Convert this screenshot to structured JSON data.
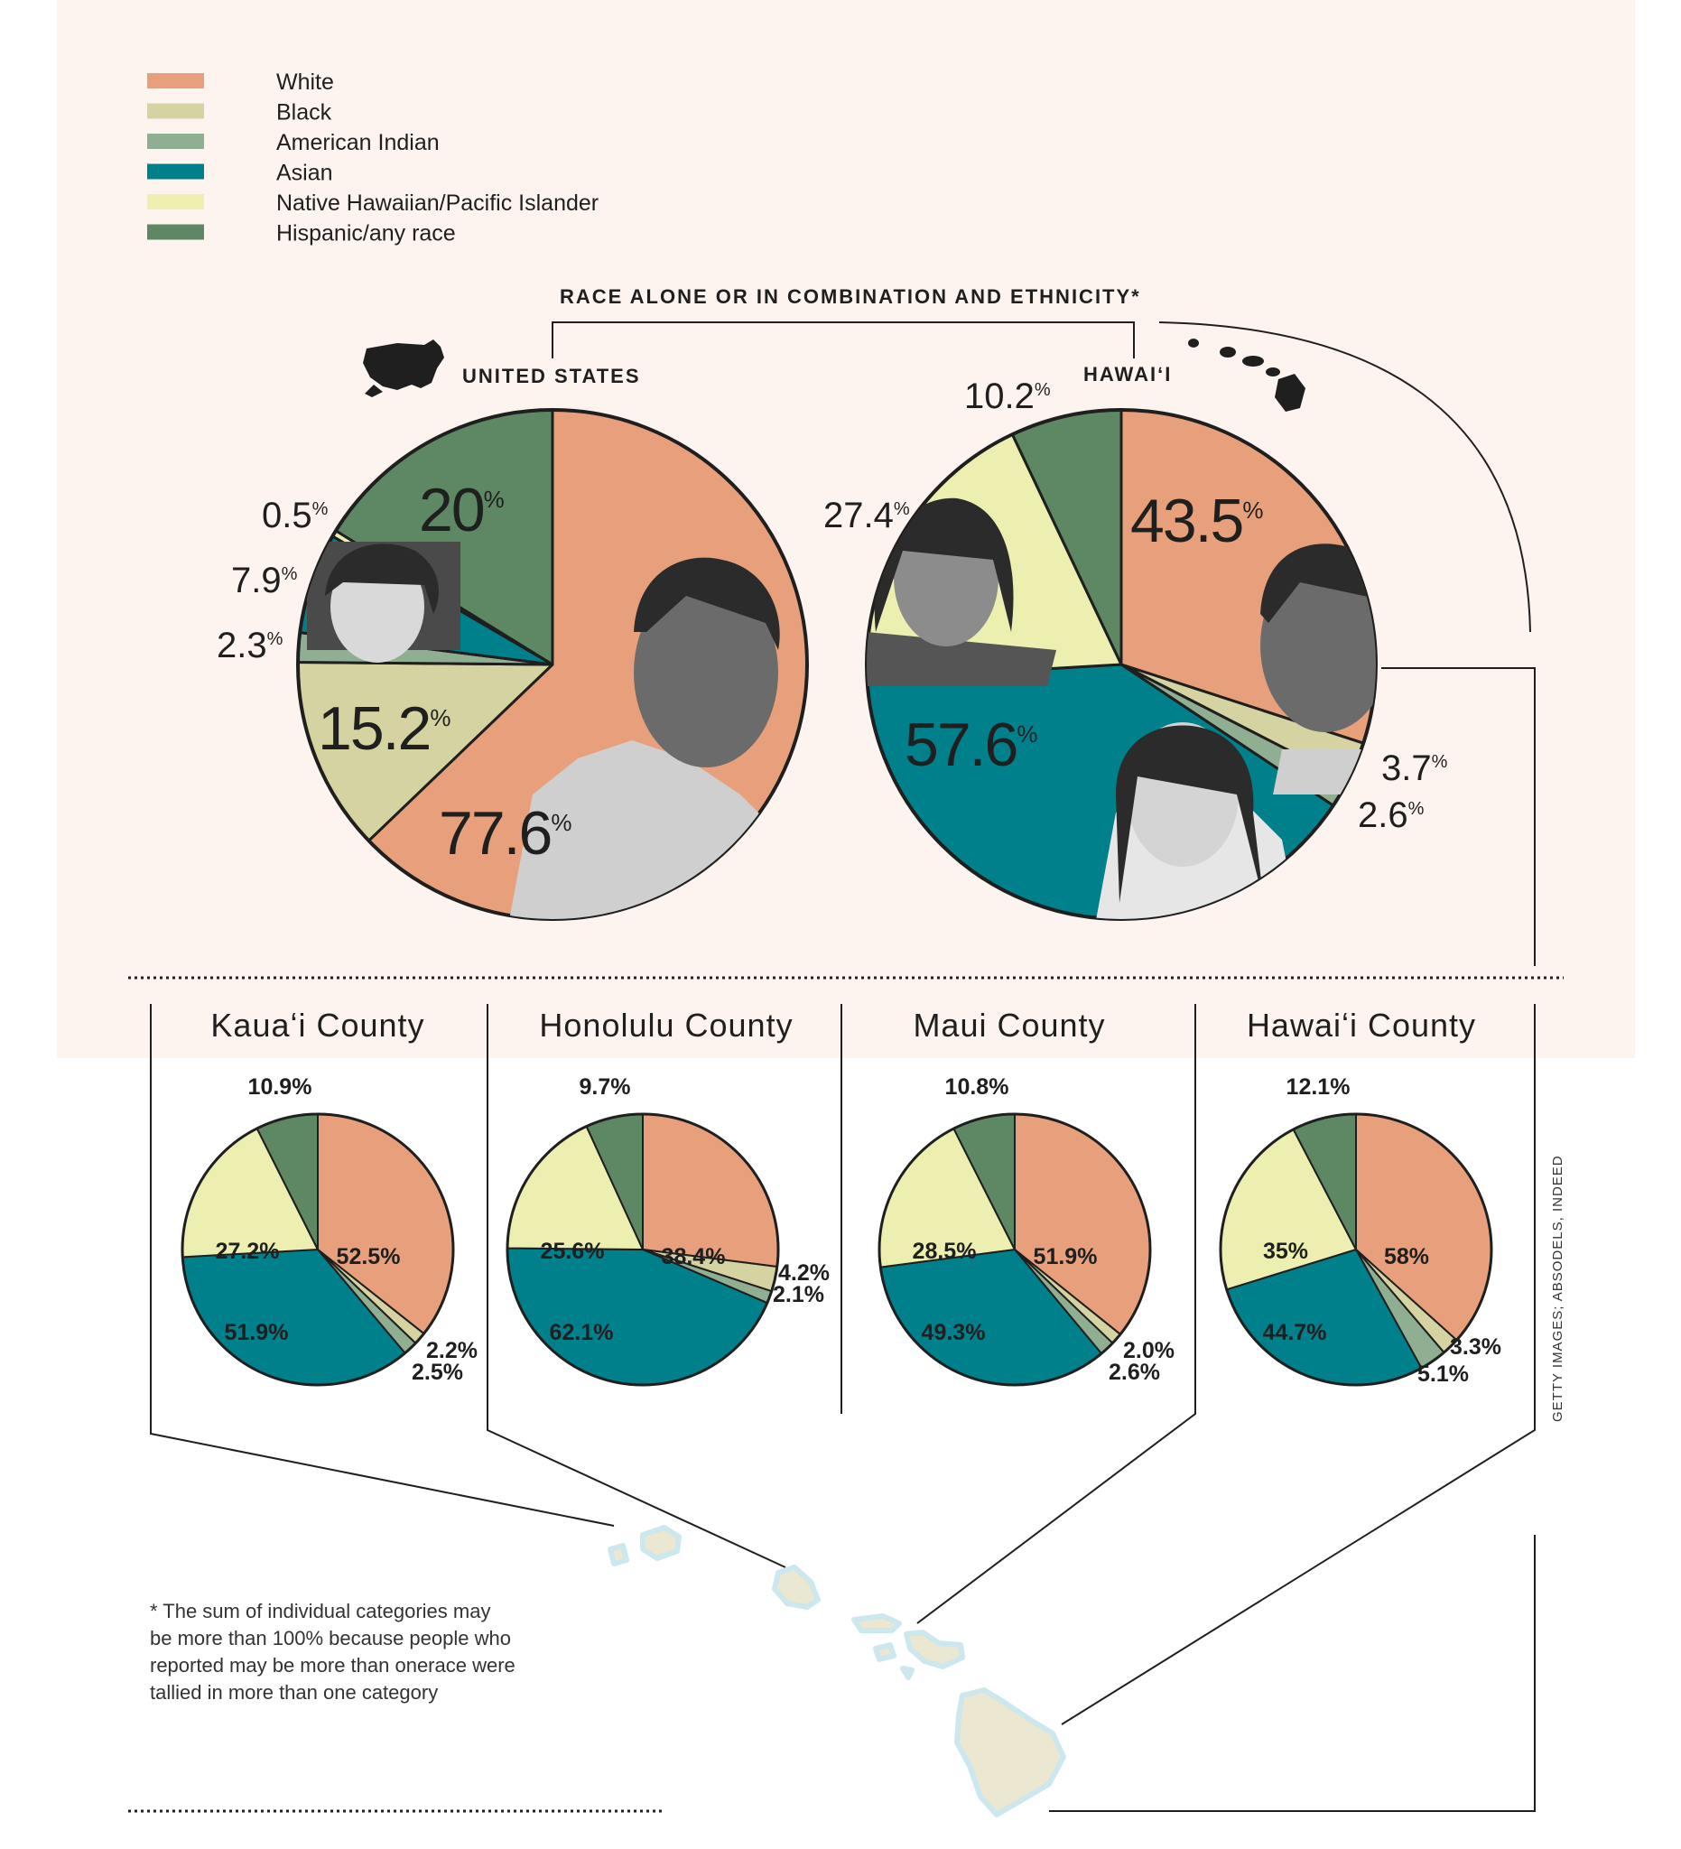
{
  "colors": {
    "white": "#e8a07c",
    "black": "#d6d3a2",
    "american_indian": "#8fae92",
    "asian": "#00808a",
    "native_hawaiian": "#ecefb0",
    "hispanic": "#5e8863",
    "panel_bg": "#fdf4ef",
    "island_land": "#ece7d0",
    "island_shore": "#cde7ef"
  },
  "legend": [
    {
      "key": "white",
      "label": "White"
    },
    {
      "key": "black",
      "label": "Black"
    },
    {
      "key": "american_indian",
      "label": "American Indian"
    },
    {
      "key": "asian",
      "label": "Asian"
    },
    {
      "key": "native_hawaiian",
      "label": "Native Hawaiian/Pacific Islander"
    },
    {
      "key": "hispanic",
      "label": "Hispanic/any race"
    }
  ],
  "section_title": "RACE ALONE OR IN COMBINATION AND ETHNICITY*",
  "icons": [
    "us-map-icon",
    "hawaii-islands-icon"
  ],
  "chart_data": [
    {
      "type": "pie",
      "name": "UNITED STATES",
      "slices": [
        {
          "key": "white",
          "value": 77.6,
          "label": "77.6"
        },
        {
          "key": "black",
          "value": 15.2,
          "label": "15.2"
        },
        {
          "key": "american_indian",
          "value": 2.3,
          "label": "2.3"
        },
        {
          "key": "asian",
          "value": 7.9,
          "label": "7.9"
        },
        {
          "key": "native_hawaiian",
          "value": 0.5,
          "label": "0.5"
        },
        {
          "key": "hispanic",
          "value": 20,
          "label": "20"
        }
      ],
      "percent_sign": "%"
    },
    {
      "type": "pie",
      "name": "HAWAIʻI",
      "slices": [
        {
          "key": "white",
          "value": 43.5,
          "label": "43.5"
        },
        {
          "key": "black",
          "value": 3.7,
          "label": "3.7"
        },
        {
          "key": "american_indian",
          "value": 2.6,
          "label": "2.6"
        },
        {
          "key": "asian",
          "value": 57.6,
          "label": "57.6"
        },
        {
          "key": "native_hawaiian",
          "value": 27.4,
          "label": "27.4"
        },
        {
          "key": "hispanic",
          "value": 10.2,
          "label": "10.2"
        }
      ],
      "percent_sign": "%"
    },
    {
      "type": "pie",
      "name": "Kauaʻi County",
      "slices": [
        {
          "key": "white",
          "value": 52.5,
          "label": "52.5%"
        },
        {
          "key": "black",
          "value": 2.2,
          "label": "2.2%"
        },
        {
          "key": "american_indian",
          "value": 2.5,
          "label": "2.5%"
        },
        {
          "key": "asian",
          "value": 51.9,
          "label": "51.9%"
        },
        {
          "key": "native_hawaiian",
          "value": 27.2,
          "label": "27.2%"
        },
        {
          "key": "hispanic",
          "value": 10.9,
          "label": "10.9%"
        }
      ]
    },
    {
      "type": "pie",
      "name": "Honolulu County",
      "slices": [
        {
          "key": "white",
          "value": 38.4,
          "label": "38.4%"
        },
        {
          "key": "black",
          "value": 4.2,
          "label": "4.2%"
        },
        {
          "key": "american_indian",
          "value": 2.1,
          "label": "2.1%"
        },
        {
          "key": "asian",
          "value": 62.1,
          "label": "62.1%"
        },
        {
          "key": "native_hawaiian",
          "value": 25.6,
          "label": "25.6%"
        },
        {
          "key": "hispanic",
          "value": 9.7,
          "label": "9.7%"
        }
      ]
    },
    {
      "type": "pie",
      "name": "Maui County",
      "slices": [
        {
          "key": "white",
          "value": 51.9,
          "label": "51.9%"
        },
        {
          "key": "black",
          "value": 2.0,
          "label": "2.0%"
        },
        {
          "key": "american_indian",
          "value": 2.6,
          "label": "2.6%"
        },
        {
          "key": "asian",
          "value": 49.3,
          "label": "49.3%"
        },
        {
          "key": "native_hawaiian",
          "value": 28.5,
          "label": "28.5%"
        },
        {
          "key": "hispanic",
          "value": 10.8,
          "label": "10.8%"
        }
      ]
    },
    {
      "type": "pie",
      "name": "Hawaiʻi County",
      "slices": [
        {
          "key": "white",
          "value": 58,
          "label": "58%"
        },
        {
          "key": "black",
          "value": 3.3,
          "label": "3.3%"
        },
        {
          "key": "american_indian",
          "value": 5.1,
          "label": "5.1%"
        },
        {
          "key": "asian",
          "value": 44.7,
          "label": "44.7%"
        },
        {
          "key": "native_hawaiian",
          "value": 35,
          "label": "35%"
        },
        {
          "key": "hispanic",
          "value": 12.1,
          "label": "12.1%"
        }
      ]
    }
  ],
  "footnote": [
    "* The sum of individual categories may",
    "be more than 100% because people who",
    "reported may be more than onerace were",
    "tallied in more than one category"
  ],
  "credit": "GETTY IMAGES; ABSODELS, INDEED"
}
